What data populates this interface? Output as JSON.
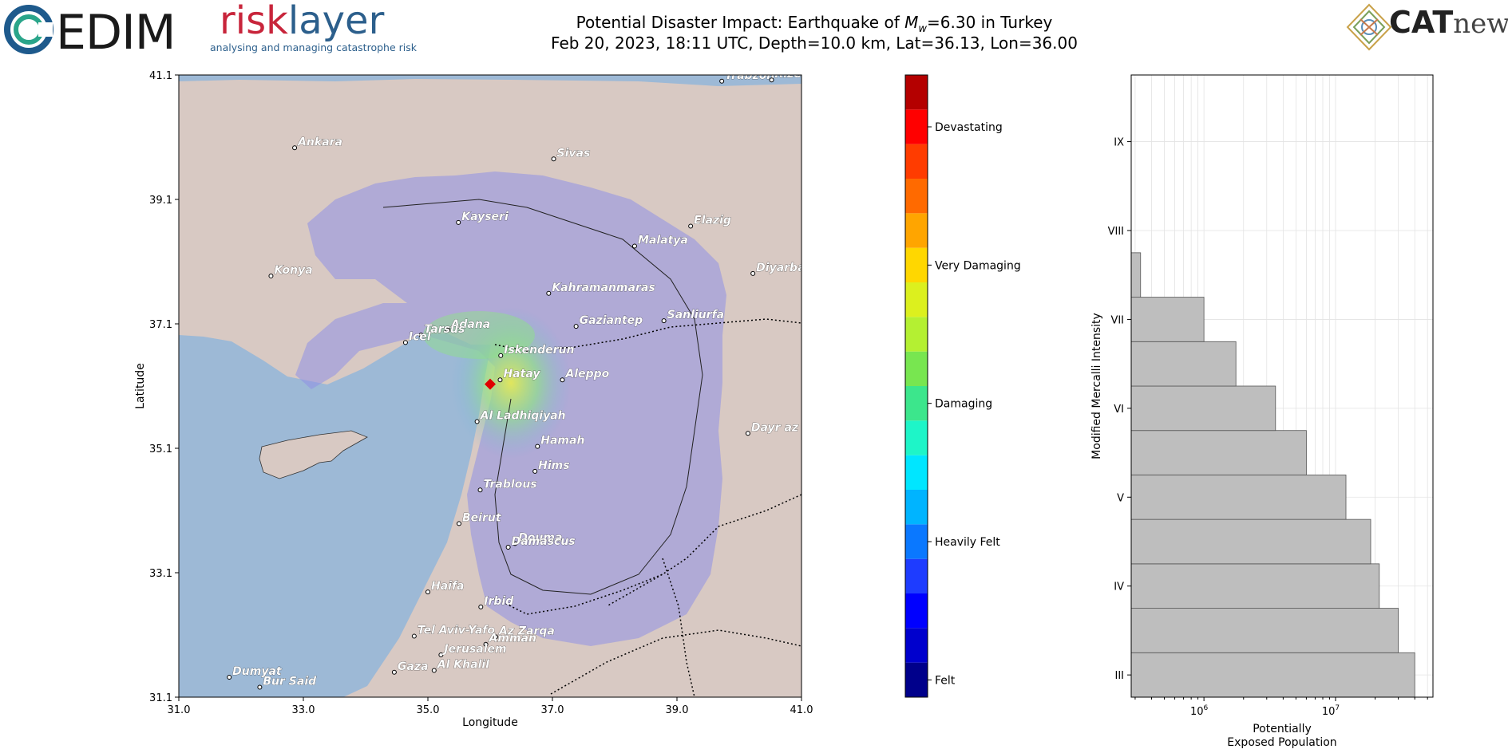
{
  "header": {
    "edim_logo_text": "EDIM",
    "risklayer_logo_part1": "risk",
    "risklayer_logo_part2": "layer",
    "risklayer_tagline": "analysing and managing catastrophe risk",
    "catnews_logo_part1": "CAT",
    "catnews_logo_part2": "news",
    "title_line1_prefix": "Potential Disaster Impact: Earthquake of ",
    "title_line1_symbol": "M",
    "title_line1_subscript": "w",
    "title_line1_suffix": "=6.30 in Turkey",
    "title_line2": "Feb 20, 2023, 18:11 UTC, Depth=10.0 km, Lat=36.13, Lon=36.00"
  },
  "colors": {
    "sea": "#9db9d6",
    "land": "#d8c9c3",
    "shaking": "#8f8fe6",
    "epicenter": "#e00000",
    "histogram_bar": "#bebebe"
  },
  "map": {
    "xlabel": "Longitude",
    "ylabel": "Latitude",
    "xlim": [
      31.0,
      41.0
    ],
    "ylim": [
      31.1,
      41.1
    ],
    "xticks": [
      "31.0",
      "33.0",
      "35.0",
      "37.0",
      "39.0",
      "41.0"
    ],
    "yticks": [
      "31.1",
      "33.1",
      "35.1",
      "37.1",
      "39.1",
      "41.1"
    ],
    "epicenter": {
      "lon": 36.0,
      "lat": 36.13
    },
    "cities": [
      {
        "name": "Trabzon",
        "lon": 39.72,
        "lat": 41.0
      },
      {
        "name": "Rize",
        "lon": 40.52,
        "lat": 41.02
      },
      {
        "name": "Ankara",
        "lon": 32.86,
        "lat": 39.93
      },
      {
        "name": "Sivas",
        "lon": 37.02,
        "lat": 39.75
      },
      {
        "name": "Kayseri",
        "lon": 35.49,
        "lat": 38.73
      },
      {
        "name": "Elazig",
        "lon": 39.22,
        "lat": 38.67
      },
      {
        "name": "Malatya",
        "lon": 38.32,
        "lat": 38.35
      },
      {
        "name": "Konya",
        "lon": 32.48,
        "lat": 37.87
      },
      {
        "name": "Diyarbakir",
        "lon": 40.22,
        "lat": 37.91
      },
      {
        "name": "Kahramanmaras",
        "lon": 36.94,
        "lat": 37.59
      },
      {
        "name": "Gaziantep",
        "lon": 37.38,
        "lat": 37.06
      },
      {
        "name": "Sanliurfa",
        "lon": 38.79,
        "lat": 37.15
      },
      {
        "name": "Adana",
        "lon": 35.32,
        "lat": 37.0
      },
      {
        "name": "Tarsus",
        "lon": 34.89,
        "lat": 36.92
      },
      {
        "name": "Icel",
        "lon": 34.64,
        "lat": 36.8
      },
      {
        "name": "Iskenderun",
        "lon": 36.17,
        "lat": 36.59
      },
      {
        "name": "Hatay",
        "lon": 36.16,
        "lat": 36.2
      },
      {
        "name": "Aleppo",
        "lon": 37.16,
        "lat": 36.2
      },
      {
        "name": "Al Ladhiqiyah",
        "lon": 35.79,
        "lat": 35.53
      },
      {
        "name": "Dayr az Zawr",
        "lon": 40.14,
        "lat": 35.34
      },
      {
        "name": "Hamah",
        "lon": 36.76,
        "lat": 35.13
      },
      {
        "name": "Hims",
        "lon": 36.72,
        "lat": 34.73
      },
      {
        "name": "Trablous",
        "lon": 35.84,
        "lat": 34.43
      },
      {
        "name": "Beirut",
        "lon": 35.5,
        "lat": 33.89
      },
      {
        "name": "Douma",
        "lon": 36.4,
        "lat": 33.57
      },
      {
        "name": "Damascus",
        "lon": 36.29,
        "lat": 33.51
      },
      {
        "name": "Haifa",
        "lon": 35.0,
        "lat": 32.79
      },
      {
        "name": "Irbid",
        "lon": 35.85,
        "lat": 32.55
      },
      {
        "name": "Tel Aviv-Yafo",
        "lon": 34.78,
        "lat": 32.08
      },
      {
        "name": "Az Zarqa",
        "lon": 36.09,
        "lat": 32.07
      },
      {
        "name": "Amman",
        "lon": 35.93,
        "lat": 31.95
      },
      {
        "name": "Jerusalem",
        "lon": 35.21,
        "lat": 31.78
      },
      {
        "name": "Gaza",
        "lon": 34.46,
        "lat": 31.5
      },
      {
        "name": "Al Khalil",
        "lon": 35.1,
        "lat": 31.53
      },
      {
        "name": "Dumyat",
        "lon": 31.81,
        "lat": 31.42
      },
      {
        "name": "Bur Said",
        "lon": 32.3,
        "lat": 31.26
      }
    ]
  },
  "colorbar": {
    "colors": [
      "#00008b",
      "#0000cd",
      "#0000ff",
      "#1e3cff",
      "#0a78ff",
      "#00b4ff",
      "#00e6ff",
      "#1ef5c8",
      "#3ce68c",
      "#78e650",
      "#b4f032",
      "#dcf01e",
      "#ffd700",
      "#ffa500",
      "#ff6a00",
      "#ff3c00",
      "#ff0000",
      "#b40000"
    ],
    "labels": [
      "Felt",
      "Heavily Felt",
      "Damaging",
      "Very Damaging",
      "Devastating"
    ]
  },
  "chart_data": {
    "type": "bar",
    "orientation": "horizontal",
    "ylabel": "Modified Mercalli Intensity",
    "xlabel_line1": "Potentially",
    "xlabel_line2": "Exposed Population",
    "xscale": "log",
    "xlim": [
      280000,
      55000000
    ],
    "x_tick_labels": [
      {
        "value": 1000000,
        "base": "10",
        "exp": "6"
      },
      {
        "value": 10000000,
        "base": "10",
        "exp": "7"
      }
    ],
    "y_tick_labels": [
      "III",
      "IV",
      "V",
      "VI",
      "VII",
      "VIII",
      "IX"
    ],
    "ylim": [
      2.75,
      9.75
    ],
    "grid": true,
    "bars": [
      {
        "mmi_bottom": 2.75,
        "mmi_top": 3.25,
        "population": 40000000
      },
      {
        "mmi_bottom": 3.25,
        "mmi_top": 3.75,
        "population": 30000000
      },
      {
        "mmi_bottom": 3.75,
        "mmi_top": 4.25,
        "population": 21500000
      },
      {
        "mmi_bottom": 4.25,
        "mmi_top": 4.75,
        "population": 18500000
      },
      {
        "mmi_bottom": 4.75,
        "mmi_top": 5.25,
        "population": 12000000
      },
      {
        "mmi_bottom": 5.25,
        "mmi_top": 5.75,
        "population": 6000000
      },
      {
        "mmi_bottom": 5.75,
        "mmi_top": 6.25,
        "population": 3500000
      },
      {
        "mmi_bottom": 6.25,
        "mmi_top": 6.75,
        "population": 1750000
      },
      {
        "mmi_bottom": 6.75,
        "mmi_top": 7.25,
        "population": 1000000
      },
      {
        "mmi_bottom": 7.25,
        "mmi_top": 7.75,
        "population": 330000
      }
    ]
  }
}
